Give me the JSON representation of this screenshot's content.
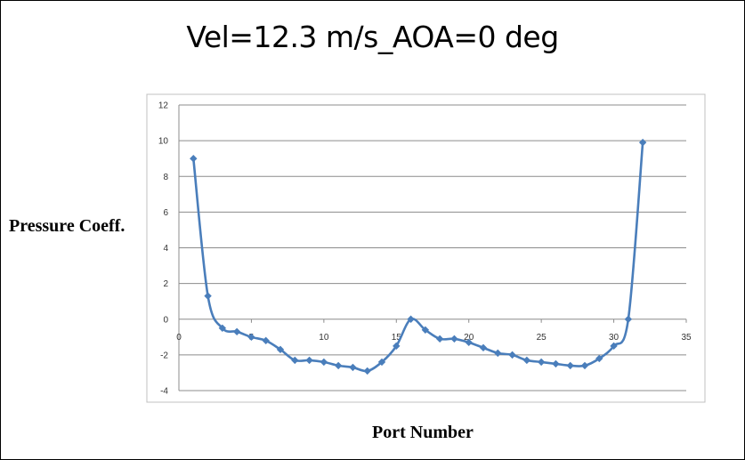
{
  "chart_data": {
    "type": "line",
    "title": "Vel=12.3 m/s_AOA=0 deg",
    "xlabel": "Port Number",
    "ylabel": "Pressure Coeff.",
    "xlim": [
      0,
      35
    ],
    "ylim": [
      -4,
      12
    ],
    "x_ticks": [
      "0",
      "5",
      "10",
      "15",
      "20",
      "25",
      "30",
      "35"
    ],
    "y_ticks": [
      "12",
      "10",
      "8",
      "6",
      "4",
      "2",
      "0",
      "-2",
      "-4"
    ],
    "grid": "horizontal",
    "legend": "none",
    "series": [
      {
        "color": "#4a7ebb",
        "marker": "diamond",
        "smooth": true,
        "x": [
          1,
          2,
          3,
          4,
          5,
          6,
          7,
          8,
          9,
          10,
          11,
          12,
          13,
          14,
          15,
          16,
          17,
          18,
          19,
          20,
          21,
          22,
          23,
          24,
          25,
          26,
          27,
          28,
          29,
          30,
          31,
          32
        ],
        "y": [
          9.0,
          1.3,
          -0.5,
          -0.7,
          -1.0,
          -1.2,
          -1.7,
          -2.3,
          -2.3,
          -2.4,
          -2.6,
          -2.7,
          -2.9,
          -2.4,
          -1.5,
          0.0,
          -0.6,
          -1.1,
          -1.1,
          -1.3,
          -1.6,
          -1.9,
          -2.0,
          -2.3,
          -2.4,
          -2.5,
          -2.6,
          -2.6,
          -2.2,
          -1.5,
          0.0,
          9.9
        ]
      }
    ]
  }
}
